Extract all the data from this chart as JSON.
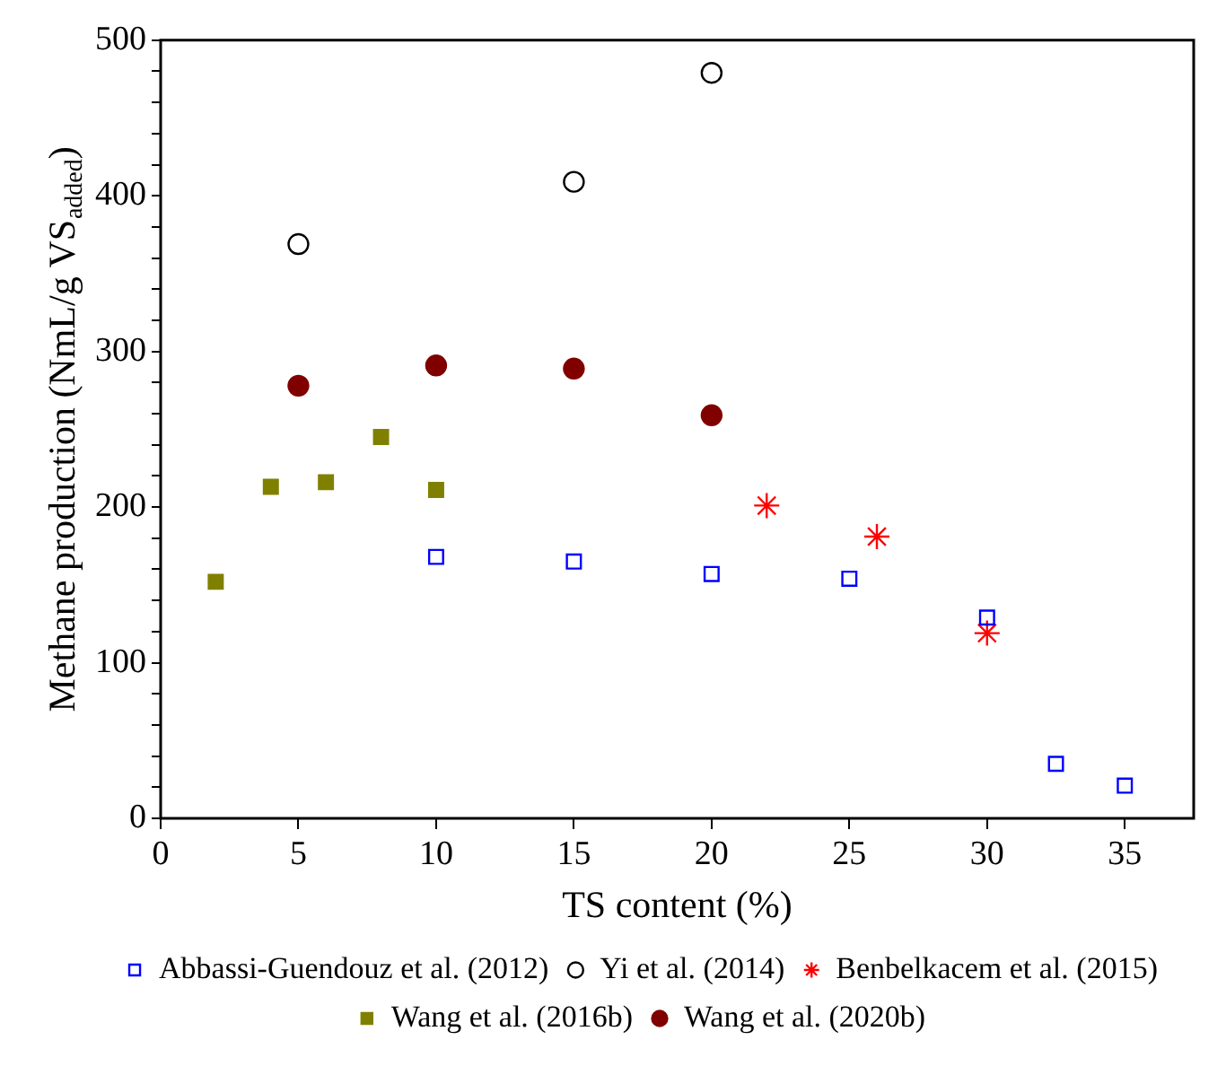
{
  "chart_data": {
    "type": "scatter",
    "xlabel": "TS content (%)",
    "ylabel": "Methane production (NmL/g VS$_{added}$)",
    "xlim": [
      0,
      37.5
    ],
    "xticks": [
      0,
      5,
      10,
      15,
      20,
      25,
      30,
      35
    ],
    "ylim": [
      0,
      500
    ],
    "yticks": [
      0,
      {
        "value": 20,
        "label": null
      },
      {
        "value": 40,
        "label": null
      },
      {
        "value": 60,
        "label": null
      },
      {
        "value": 80,
        "label": null
      },
      100,
      {
        "value": 120,
        "label": null
      },
      {
        "value": 140,
        "label": null
      },
      {
        "value": 160,
        "label": null
      },
      {
        "value": 180,
        "label": null
      },
      200,
      {
        "value": 220,
        "label": null
      },
      {
        "value": 240,
        "label": null
      },
      {
        "value": 260,
        "label": null
      },
      {
        "value": 280,
        "label": null
      },
      300,
      {
        "value": 320,
        "label": null
      },
      {
        "value": 340,
        "label": null
      },
      {
        "value": 360,
        "label": null
      },
      {
        "value": 380,
        "label": null
      },
      400,
      {
        "value": 420,
        "label": null
      },
      {
        "value": 440,
        "label": null
      },
      {
        "value": 460,
        "label": null
      },
      {
        "value": 480,
        "label": null
      },
      500
    ],
    "grid": false,
    "legend": "bottom",
    "series": [
      {
        "name": "Abbassi-Guendouz et al. (2012)",
        "color": "#0000ff",
        "marker": "square",
        "x": [
          10,
          15,
          20,
          25,
          30,
          32.5,
          35
        ],
        "values": [
          168,
          165,
          157,
          154,
          129,
          35,
          21
        ]
      },
      {
        "name": "Yi et al. (2014)",
        "color": "#000000",
        "marker": "circle",
        "x": [
          5,
          15,
          20
        ],
        "values": [
          369,
          409,
          479
        ]
      },
      {
        "name": "Benbelkacem et al. (2015)",
        "color": "#ff0000",
        "marker": "cross",
        "x": [
          22,
          26,
          30
        ],
        "values": [
          201,
          181,
          119
        ]
      },
      {
        "name": "Wang et al. (2016b)",
        "color": "#808000",
        "marker": "square",
        "x": [
          2,
          4,
          6,
          8,
          10
        ],
        "values": [
          152,
          213,
          216,
          245,
          211
        ]
      },
      {
        "name": "Wang et al. (2020b)",
        "color": "#800000",
        "marker": "circle",
        "x": [
          5,
          10,
          15,
          20
        ],
        "values": [
          278,
          291,
          289,
          259
        ]
      }
    ]
  }
}
